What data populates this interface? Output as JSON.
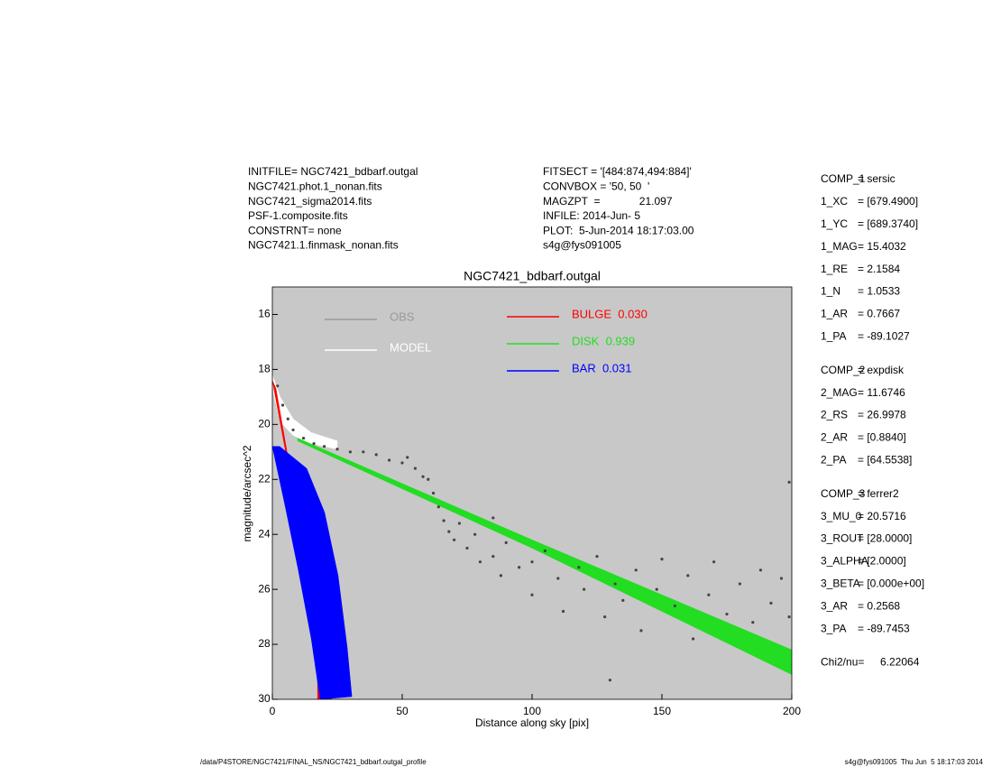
{
  "header": {
    "left": [
      "INITFILE= NGC7421_bdbarf.outgal",
      "NGC7421.phot.1_nonan.fits",
      "NGC7421_sigma2014.fits",
      "PSF-1.composite.fits",
      "CONSTRNT= none",
      "NGC7421.1.finmask_nonan.fits"
    ],
    "right": [
      "FITSECT = '[484:874,494:884]'",
      "CONVBOX = '50, 50  '",
      "MAGZPT  =             21.097",
      "INFILE: 2014-Jun- 5",
      "PLOT:  5-Jun-2014 18:17:03.00",
      "s4g@fys091005"
    ]
  },
  "parameters": [
    [
      [
        "COMP_1",
        "= sersic"
      ],
      [
        "1_XC",
        "= [679.4900]"
      ],
      [
        "1_YC",
        "= [689.3740]"
      ],
      [
        "1_MAG",
        "= 15.4032"
      ],
      [
        "1_RE",
        "= 2.1584"
      ],
      [
        "1_N",
        "= 1.0533"
      ],
      [
        "1_AR",
        "= 0.7667"
      ],
      [
        "1_PA",
        "= -89.1027"
      ]
    ],
    [
      [
        "COMP_2",
        "= expdisk"
      ],
      [
        "2_MAG",
        "= 11.6746"
      ],
      [
        "2_RS",
        "= 26.9978"
      ],
      [
        "2_AR",
        "= [0.8840]"
      ],
      [
        "2_PA",
        "= [64.5538]"
      ]
    ],
    [
      [
        "COMP_3",
        "= ferrer2"
      ],
      [
        "3_MU_0",
        "= 20.5716"
      ],
      [
        "3_ROUT",
        "= [28.0000]"
      ],
      [
        "3_ALPHA",
        "= [2.0000]"
      ],
      [
        "3_BETA",
        "= [0.000e+00]"
      ],
      [
        "3_AR",
        "= 0.2568"
      ],
      [
        "3_PA",
        "= -89.7453"
      ]
    ],
    [
      [
        "Chi2/nu=",
        "6.22064"
      ]
    ]
  ],
  "footer": {
    "left": "/data/P4STORE/NGC7421/FINAL_NS/NGC7421_bdbarf.outgal_profile",
    "right": "s4g@fys091005  Thu Jun  5 18:17:03 2014"
  },
  "chart_data": {
    "type": "scatter",
    "title": "NGC7421_bdbarf.outgal",
    "x_label": "Distance along sky [pix]",
    "y_label": "magnitude/arcsec^2",
    "xlim": [
      0,
      200
    ],
    "ylim": [
      30,
      15
    ],
    "xticks": [
      0,
      50,
      100,
      150,
      200
    ],
    "yticks": [
      16,
      18,
      20,
      22,
      24,
      26,
      28,
      30
    ],
    "background": "#c8c8c8",
    "series": [
      {
        "name": "OBS",
        "style": "points",
        "color": "#444444",
        "legend_color": "#999999",
        "x": [
          2,
          4,
          6,
          8,
          12,
          16,
          20,
          25,
          30,
          35,
          40,
          45,
          50,
          55,
          58,
          62,
          64,
          66,
          68,
          70,
          72,
          75,
          78,
          80,
          85,
          88,
          90,
          95,
          100,
          100,
          105,
          110,
          112,
          118,
          120,
          125,
          128,
          132,
          135,
          140,
          142,
          148,
          150,
          155,
          160,
          162,
          168,
          170,
          175,
          180,
          185,
          188,
          192,
          196,
          199,
          199,
          85,
          60,
          52,
          130
        ],
        "values": [
          18.6,
          19.3,
          19.8,
          20.2,
          20.5,
          20.7,
          20.8,
          20.9,
          21.0,
          21.0,
          21.1,
          21.3,
          21.4,
          21.6,
          21.9,
          22.5,
          23.0,
          23.5,
          23.9,
          24.2,
          23.6,
          24.5,
          24.0,
          25.0,
          24.8,
          25.5,
          24.3,
          25.2,
          25.0,
          26.2,
          24.6,
          25.6,
          26.8,
          25.2,
          26.0,
          24.8,
          27.0,
          25.8,
          26.4,
          25.3,
          27.5,
          26.0,
          24.9,
          26.6,
          25.5,
          27.8,
          26.2,
          25.0,
          26.9,
          25.8,
          27.2,
          25.3,
          26.5,
          25.6,
          27.0,
          22.1,
          23.4,
          22.0,
          21.2,
          29.3
        ]
      },
      {
        "name": "MODEL",
        "style": "band",
        "color": "#ffffff",
        "x": [
          0,
          3,
          8,
          15,
          25,
          25,
          15,
          8,
          3,
          0.5
        ],
        "values": [
          18.2,
          19.0,
          19.8,
          20.3,
          20.6,
          20.9,
          20.7,
          20.4,
          19.9,
          18.9
        ]
      },
      {
        "name": "BULGE  0.030",
        "style": "band",
        "color": "#ff0000",
        "x": [
          0,
          1.4,
          9.7,
          18.4,
          22.9,
          17.4,
          17.4,
          13.2,
          6.3
        ],
        "values": [
          18.4,
          18.7,
          23.2,
          25.9,
          30,
          30,
          27.5,
          25.5,
          21.6
        ]
      },
      {
        "name": "DISK  0.939",
        "style": "band",
        "color": "#22dd22",
        "x": [
          9.7,
          100,
          200,
          200,
          100,
          9.7
        ],
        "values": [
          20.5,
          24.2,
          28.2,
          29.1,
          24.5,
          20.6
        ]
      },
      {
        "name": "BAR  0.031",
        "style": "band",
        "color": "#0000ff",
        "x": [
          0,
          2.8,
          13.2,
          20.1,
          25.3,
          28.8,
          30.6,
          18.4,
          15,
          10,
          5
        ],
        "values": [
          20.8,
          20.8,
          21.6,
          23.2,
          25.5,
          28.1,
          29.9,
          30,
          27.8,
          25.3,
          23
        ]
      }
    ]
  }
}
